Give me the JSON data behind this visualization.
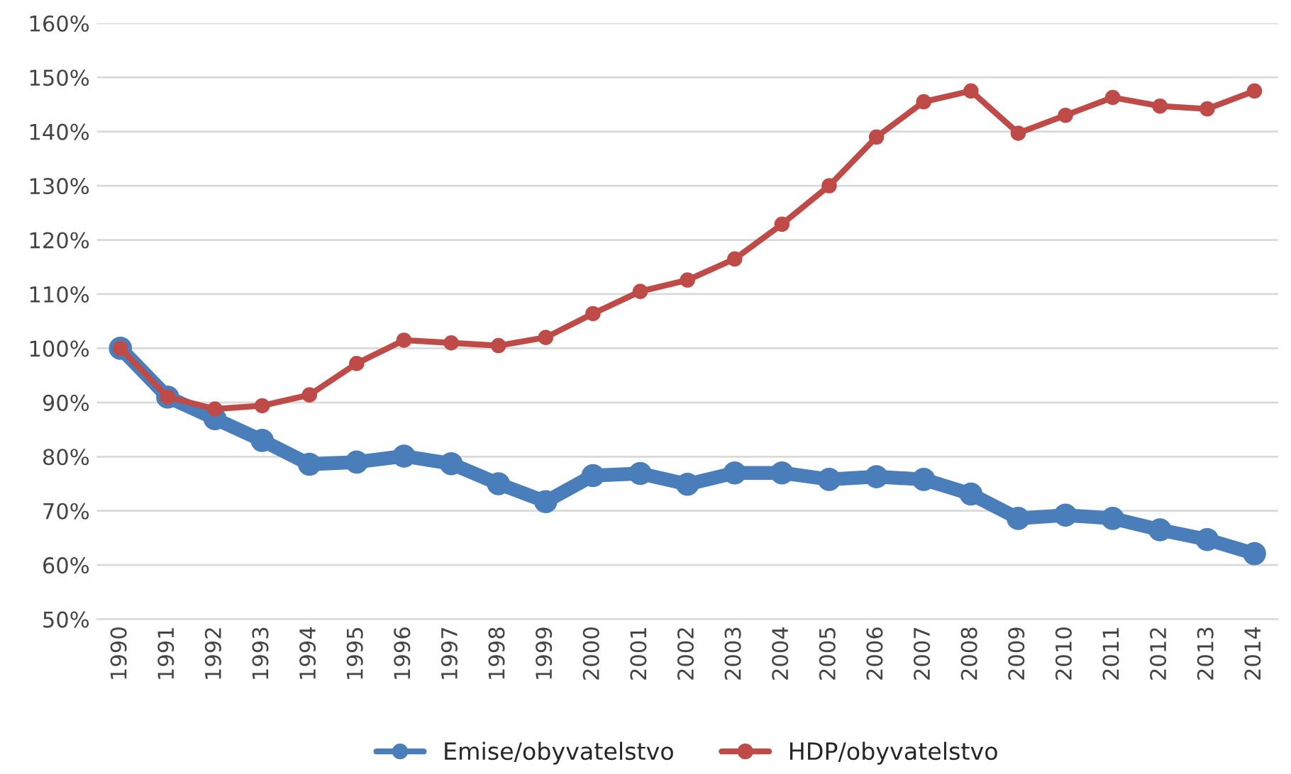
{
  "chart_data": {
    "type": "line",
    "categories": [
      "1990",
      "1991",
      "1992",
      "1993",
      "1994",
      "1995",
      "1996",
      "1997",
      "1998",
      "1999",
      "2000",
      "2001",
      "2002",
      "2003",
      "2004",
      "2005",
      "2006",
      "2007",
      "2008",
      "2009",
      "2010",
      "2011",
      "2012",
      "2013",
      "2014"
    ],
    "series": [
      {
        "name": "Emise/obyvatelstvo",
        "color": "#4a7ebb",
        "values": [
          100,
          91,
          87,
          83,
          78.6,
          79,
          80.1,
          78.7,
          75,
          71.7,
          76.5,
          76.9,
          74.9,
          77,
          77,
          75.8,
          76.3,
          75.8,
          73.1,
          68.6,
          69.2,
          68.6,
          66.5,
          64.7,
          62.1
        ]
      },
      {
        "name": "HDP/obyvatelstvo",
        "color": "#be4b48",
        "values": [
          100,
          91,
          88.8,
          89.4,
          91.4,
          97.2,
          101.5,
          101,
          100.5,
          102,
          106.4,
          110.5,
          112.6,
          116.5,
          122.9,
          130,
          139,
          145.5,
          147.5,
          139.7,
          143,
          146.3,
          144.7,
          144.2,
          147.5
        ]
      }
    ],
    "ylim": [
      50,
      160
    ],
    "yticks": [
      {
        "value": 50,
        "label": "50%"
      },
      {
        "value": 60,
        "label": "60%"
      },
      {
        "value": 70,
        "label": "70%"
      },
      {
        "value": 80,
        "label": "80%"
      },
      {
        "value": 90,
        "label": "90%"
      },
      {
        "value": 100,
        "label": "100%"
      },
      {
        "value": 110,
        "label": "110%"
      },
      {
        "value": 120,
        "label": "120%"
      },
      {
        "value": 130,
        "label": "130%"
      },
      {
        "value": 140,
        "label": "140%"
      },
      {
        "value": 150,
        "label": "150%"
      },
      {
        "value": 160,
        "label": "160%"
      }
    ],
    "grid": "y",
    "legend": "bottom",
    "marker": "circle",
    "line_style": "solid"
  }
}
